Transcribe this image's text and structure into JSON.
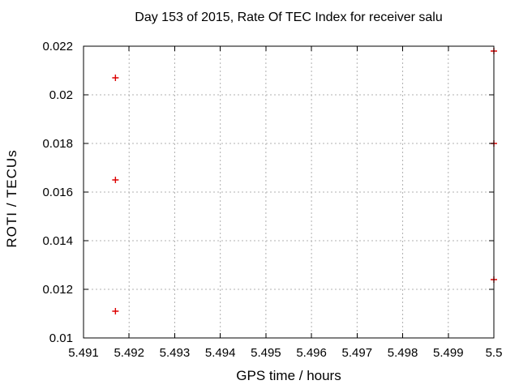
{
  "chart_data": {
    "type": "scatter",
    "title": "Day 153 of 2015, Rate Of TEC Index for receiver salu",
    "xlabel": "GPS time / hours",
    "ylabel": "ROTI / TECUs",
    "xlim": [
      5.491,
      5.5
    ],
    "ylim": [
      0.01,
      0.022
    ],
    "xticks": [
      5.491,
      5.492,
      5.493,
      5.494,
      5.495,
      5.496,
      5.497,
      5.498,
      5.499,
      5.5
    ],
    "xtick_labels": [
      "5.491",
      "5.492",
      "5.493",
      "5.494",
      "5.495",
      "5.496",
      "5.497",
      "5.498",
      "5.499",
      "5.5"
    ],
    "yticks": [
      0.01,
      0.012,
      0.014,
      0.016,
      0.018,
      0.02,
      0.022
    ],
    "ytick_labels": [
      "0.01",
      "0.012",
      "0.014",
      "0.016",
      "0.018",
      "0.02",
      "0.022"
    ],
    "grid": true,
    "grid_style": "dotted",
    "legend": "none",
    "marker": "plus",
    "colors": {
      "marker": "#dd0000",
      "grid": "#b0b0b0",
      "axis": "#000000",
      "background": "#ffffff"
    },
    "series": [
      {
        "name": "ROTI",
        "points": [
          [
            5.4917,
            0.0207
          ],
          [
            5.4917,
            0.0165
          ],
          [
            5.4917,
            0.0111
          ],
          [
            5.5,
            0.0218
          ],
          [
            5.5,
            0.018
          ],
          [
            5.5,
            0.0124
          ]
        ]
      }
    ]
  }
}
